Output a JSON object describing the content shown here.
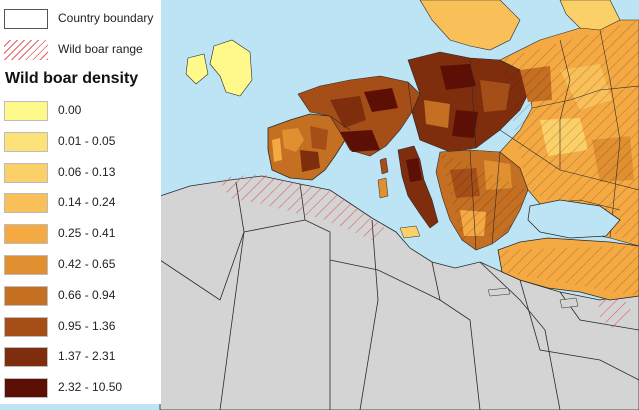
{
  "legend": {
    "boundary_label": "Country boundary",
    "range_label": "Wild boar range",
    "title": "Wild boar density",
    "classes": [
      {
        "label": "0.00",
        "color": "#fff98c"
      },
      {
        "label": "0.01 - 0.05",
        "color": "#fde27a"
      },
      {
        "label": "0.06 - 0.13",
        "color": "#fcd069"
      },
      {
        "label": "0.14 - 0.24",
        "color": "#f9bf59"
      },
      {
        "label": "0.25 - 0.41",
        "color": "#f4a943"
      },
      {
        "label": "0.42 - 0.65",
        "color": "#e08f31"
      },
      {
        "label": "0.66 - 0.94",
        "color": "#c46f22"
      },
      {
        "label": "0.95 - 1.36",
        "color": "#a54e18"
      },
      {
        "label": "1.37 - 2.31",
        "color": "#7f2e0d"
      },
      {
        "label": "2.32 - 10.50",
        "color": "#5c0f05"
      }
    ]
  },
  "colors": {
    "sea": "#bde4f5",
    "land": "#d4d4d4",
    "boundary": "#2a2a2a",
    "range_hatch": "#e05555"
  }
}
